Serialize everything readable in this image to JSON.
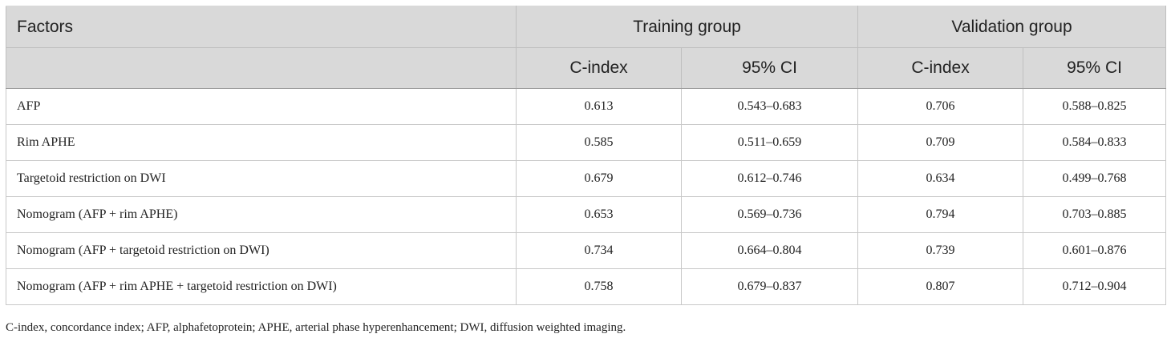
{
  "table": {
    "headers": {
      "factors": "Factors",
      "training_group": "Training group",
      "validation_group": "Validation group",
      "c_index": "C-index",
      "ci": "95% CI"
    },
    "rows": [
      {
        "factor": "AFP",
        "train_c": "0.613",
        "train_ci": "0.543–0.683",
        "val_c": "0.706",
        "val_ci": "0.588–0.825"
      },
      {
        "factor": "Rim APHE",
        "train_c": "0.585",
        "train_ci": "0.511–0.659",
        "val_c": "0.709",
        "val_ci": "0.584–0.833"
      },
      {
        "factor": "Targetoid restriction on DWI",
        "train_c": "0.679",
        "train_ci": "0.612–0.746",
        "val_c": "0.634",
        "val_ci": "0.499–0.768"
      },
      {
        "factor": "Nomogram (AFP + rim APHE)",
        "train_c": "0.653",
        "train_ci": "0.569–0.736",
        "val_c": "0.794",
        "val_ci": "0.703–0.885"
      },
      {
        "factor": "Nomogram (AFP + targetoid restriction on DWI)",
        "train_c": "0.734",
        "train_ci": "0.664–0.804",
        "val_c": "0.739",
        "val_ci": "0.601–0.876"
      },
      {
        "factor": "Nomogram (AFP + rim APHE + targetoid restriction on DWI)",
        "train_c": "0.758",
        "train_ci": "0.679–0.837",
        "val_c": "0.807",
        "val_ci": "0.712–0.904"
      }
    ]
  },
  "footnote": "C-index, concordance index; AFP, alphafetoprotein; APHE, arterial phase hyperenhancement; DWI, diffusion weighted imaging."
}
